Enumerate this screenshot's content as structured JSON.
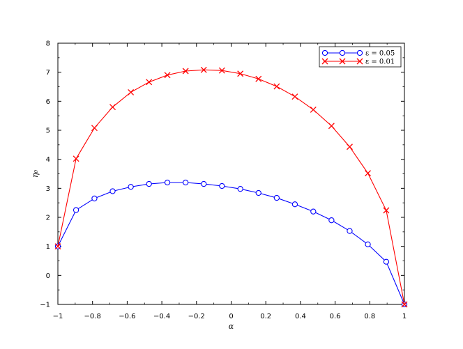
{
  "chart_data": {
    "type": "line",
    "title": "",
    "xlabel": "α",
    "ylabel": "η₀",
    "xlim": [
      -1,
      1
    ],
    "ylim": [
      -1,
      8
    ],
    "xticks": [
      "−1",
      "−0.8",
      "−0.6",
      "−0.4",
      "−0.2",
      "0",
      "0.2",
      "0.4",
      "0.6",
      "0.8",
      "1"
    ],
    "yticks": [
      "−1",
      "0",
      "1",
      "2",
      "3",
      "4",
      "5",
      "6",
      "7",
      "8"
    ],
    "grid": false,
    "legend_position": "top-right",
    "series": [
      {
        "name": "ε = 0.05",
        "color": "#0000ff",
        "marker": "circle",
        "x": [
          -1,
          -0.895,
          -0.789,
          -0.684,
          -0.579,
          -0.474,
          -0.368,
          -0.263,
          -0.158,
          -0.053,
          0.053,
          0.158,
          0.263,
          0.368,
          0.474,
          0.579,
          0.684,
          0.789,
          0.895,
          1
        ],
        "y": [
          1.0,
          2.25,
          2.65,
          2.9,
          3.05,
          3.15,
          3.2,
          3.2,
          3.15,
          3.08,
          2.98,
          2.84,
          2.67,
          2.45,
          2.2,
          1.9,
          1.53,
          1.07,
          0.47,
          -1.0
        ]
      },
      {
        "name": "ε = 0.01",
        "color": "#ff0000",
        "marker": "x",
        "x": [
          -1,
          -0.895,
          -0.789,
          -0.684,
          -0.579,
          -0.474,
          -0.368,
          -0.263,
          -0.158,
          -0.053,
          0.053,
          0.158,
          0.263,
          0.368,
          0.474,
          0.579,
          0.684,
          0.789,
          0.895,
          1
        ],
        "y": [
          1.0,
          4.02,
          5.08,
          5.8,
          6.31,
          6.66,
          6.9,
          7.04,
          7.08,
          7.06,
          6.95,
          6.77,
          6.51,
          6.16,
          5.71,
          5.15,
          4.43,
          3.52,
          2.24,
          -1.0
        ]
      }
    ]
  }
}
